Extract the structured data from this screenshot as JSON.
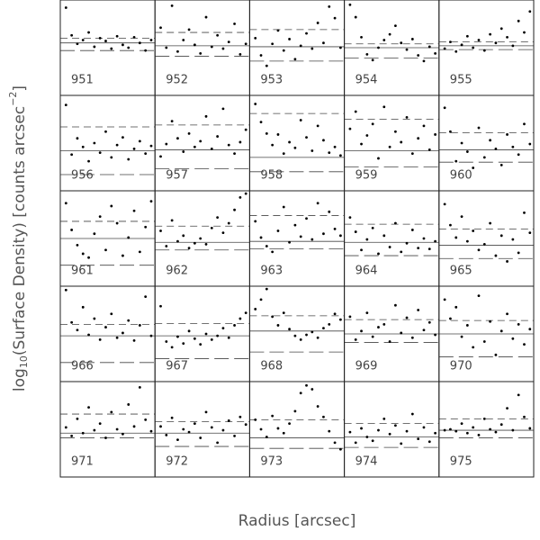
{
  "chart_data": {
    "type": "scatter-grid",
    "xlabel": "Radius [arcsec]",
    "ylabel": [
      "log",
      "10",
      "(Surface Density) [counts arcsec",
      "−2",
      "]"
    ],
    "xlim": [
      0,
      10
    ],
    "ylim": [
      0,
      10
    ],
    "x": [
      0.6,
      1.2,
      1.8,
      2.4,
      3.0,
      3.6,
      4.2,
      4.8,
      5.4,
      6.0,
      6.6,
      7.2,
      7.8,
      8.4,
      9.0,
      9.6
    ],
    "panels": [
      {
        "label": "951",
        "mean": 5.5,
        "upper": 6.0,
        "lower": 4.7,
        "y": [
          9.2,
          6.3,
          5.4,
          5.8,
          6.6,
          5.1,
          6.0,
          5.7,
          4.9,
          6.2,
          5.3,
          5.0,
          6.1,
          5.5,
          4.7,
          5.8
        ]
      },
      {
        "label": "952",
        "mean": 5.2,
        "upper": 6.6,
        "lower": 4.1,
        "y": [
          7.1,
          5.0,
          9.4,
          4.6,
          5.8,
          6.9,
          5.3,
          4.4,
          8.2,
          5.1,
          6.3,
          4.9,
          5.6,
          7.5,
          4.3,
          5.4
        ]
      },
      {
        "label": "953",
        "mean": 5.1,
        "upper": 6.9,
        "lower": 3.6,
        "y": [
          6.0,
          4.2,
          3.1,
          5.4,
          6.8,
          4.7,
          5.9,
          3.8,
          5.2,
          6.5,
          4.9,
          7.6,
          5.5,
          9.3,
          8.1,
          5.0
        ]
      },
      {
        "label": "954",
        "mean": 5.0,
        "upper": 5.4,
        "lower": 3.9,
        "y": [
          9.5,
          8.2,
          6.1,
          4.3,
          3.7,
          5.0,
          5.8,
          6.4,
          7.3,
          5.5,
          4.8,
          5.9,
          4.2,
          3.6,
          5.1,
          4.4
        ]
      },
      {
        "label": "955",
        "mean": 5.2,
        "upper": 5.6,
        "lower": 4.8,
        "y": [
          4.9,
          5.6,
          4.6,
          5.3,
          6.2,
          5.0,
          5.8,
          4.7,
          6.4,
          5.5,
          7.0,
          6.1,
          5.2,
          7.8,
          6.6,
          8.8
        ]
      },
      {
        "label": "956",
        "mean": 4.2,
        "upper": 6.7,
        "lower": 1.7,
        "y": [
          9.0,
          3.8,
          5.5,
          4.6,
          3.1,
          5.0,
          4.0,
          6.2,
          3.5,
          4.8,
          5.6,
          3.3,
          4.4,
          5.2,
          3.9,
          4.7
        ]
      },
      {
        "label": "957",
        "mean": 4.3,
        "upper": 6.9,
        "lower": 2.3,
        "y": [
          3.6,
          4.9,
          7.3,
          5.5,
          4.1,
          6.0,
          4.6,
          5.2,
          7.8,
          4.4,
          5.7,
          8.6,
          4.8,
          3.9,
          5.1,
          6.4
        ]
      },
      {
        "label": "958",
        "mean": 3.5,
        "upper": 8.1,
        "lower": 2.0,
        "y": [
          9.1,
          7.2,
          6.0,
          4.8,
          5.9,
          3.9,
          5.1,
          4.5,
          7.4,
          5.6,
          4.2,
          6.8,
          5.3,
          4.0,
          4.6,
          3.7
        ]
      },
      {
        "label": "959",
        "mean": 4.2,
        "upper": 7.5,
        "lower": 2.5,
        "y": [
          6.5,
          8.3,
          4.9,
          5.8,
          7.0,
          3.4,
          8.8,
          4.6,
          6.2,
          5.1,
          7.7,
          3.9,
          5.5,
          6.8,
          4.3,
          5.9
        ]
      },
      {
        "label": "960",
        "mean": 4.3,
        "upper": 6.1,
        "lower": 3.0,
        "y": [
          8.7,
          6.2,
          3.1,
          5.0,
          4.1,
          2.4,
          6.6,
          3.5,
          5.3,
          4.4,
          2.7,
          5.9,
          4.6,
          3.8,
          7.0,
          4.9
        ]
      },
      {
        "label": "961",
        "mean": 5.0,
        "upper": 6.8,
        "lower": 2.2,
        "y": [
          8.7,
          5.9,
          4.3,
          3.4,
          3.0,
          5.5,
          7.3,
          3.8,
          8.4,
          6.6,
          3.2,
          5.1,
          7.9,
          3.6,
          6.2,
          8.9
        ]
      },
      {
        "label": "962",
        "mean": 4.6,
        "upper": 6.3,
        "lower": 3.8,
        "y": [
          5.8,
          4.2,
          6.9,
          4.7,
          5.3,
          4.0,
          4.5,
          5.0,
          4.4,
          6.1,
          7.2,
          5.6,
          6.6,
          8.0,
          9.3,
          9.7
        ]
      },
      {
        "label": "963",
        "mean": 4.7,
        "upper": 7.4,
        "lower": 3.9,
        "y": [
          6.8,
          5.1,
          4.2,
          3.6,
          5.8,
          8.3,
          4.6,
          6.4,
          5.2,
          7.1,
          4.9,
          8.7,
          5.5,
          7.8,
          6.0,
          5.3
        ]
      },
      {
        "label": "964",
        "mean": 4.6,
        "upper": 6.5,
        "lower": 3.2,
        "y": [
          7.2,
          5.7,
          3.8,
          4.9,
          6.1,
          3.4,
          5.3,
          4.1,
          6.6,
          3.6,
          4.5,
          5.9,
          4.0,
          5.0,
          3.9,
          4.7
        ]
      },
      {
        "label": "965",
        "mean": 4.3,
        "upper": 6.0,
        "lower": 2.9,
        "y": [
          8.6,
          6.4,
          5.1,
          7.3,
          4.7,
          5.8,
          3.8,
          4.4,
          6.6,
          3.2,
          5.3,
          2.6,
          4.9,
          3.5,
          7.7,
          5.6
        ]
      },
      {
        "label": "966",
        "mean": 4.8,
        "upper": 6.0,
        "lower": 2.0,
        "y": [
          9.6,
          6.2,
          5.4,
          7.8,
          4.9,
          6.6,
          4.4,
          5.7,
          7.1,
          4.6,
          5.1,
          6.4,
          4.3,
          5.9,
          8.9,
          4.8
        ]
      },
      {
        "label": "967",
        "mean": 4.8,
        "upper": 6.1,
        "lower": 2.4,
        "y": [
          7.9,
          4.2,
          3.6,
          4.7,
          4.0,
          5.3,
          4.5,
          3.9,
          5.0,
          4.4,
          4.8,
          5.6,
          4.6,
          5.9,
          6.6,
          7.2
        ]
      },
      {
        "label": "968",
        "mean": 5.3,
        "upper": 6.9,
        "lower": 3.1,
        "y": [
          7.6,
          8.6,
          9.7,
          6.8,
          5.9,
          7.2,
          5.5,
          4.8,
          4.4,
          4.9,
          5.2,
          4.6,
          5.6,
          6.0,
          7.1,
          6.5
        ]
      },
      {
        "label": "969",
        "mean": 5.0,
        "upper": 6.5,
        "lower": 4.1,
        "y": [
          6.8,
          4.4,
          5.3,
          7.2,
          4.7,
          5.7,
          6.0,
          4.2,
          8.0,
          5.1,
          6.7,
          4.6,
          7.5,
          5.4,
          6.2,
          4.9
        ]
      },
      {
        "label": "970",
        "mean": 5.0,
        "upper": 6.4,
        "lower": 2.6,
        "y": [
          8.6,
          6.6,
          7.8,
          4.7,
          5.9,
          3.6,
          9.0,
          4.2,
          6.3,
          2.8,
          5.3,
          7.1,
          4.5,
          6.0,
          3.9,
          5.5
        ]
      },
      {
        "label": "971",
        "mean": 4.6,
        "upper": 6.6,
        "lower": 4.1,
        "y": [
          5.2,
          4.3,
          6.1,
          4.6,
          7.3,
          4.9,
          5.6,
          4.1,
          6.8,
          5.0,
          4.5,
          7.6,
          5.3,
          9.4,
          6.0,
          4.8
        ]
      },
      {
        "label": "972",
        "mean": 4.6,
        "upper": 5.8,
        "lower": 3.2,
        "y": [
          5.3,
          4.4,
          6.2,
          3.9,
          5.0,
          4.7,
          5.6,
          4.1,
          6.8,
          5.2,
          3.6,
          4.9,
          5.9,
          4.3,
          6.3,
          5.5
        ]
      },
      {
        "label": "973",
        "mean": 4.1,
        "upper": 6.0,
        "lower": 3.0,
        "y": [
          6.0,
          5.0,
          4.2,
          6.4,
          5.1,
          4.6,
          5.6,
          6.9,
          8.8,
          9.6,
          9.2,
          7.4,
          6.3,
          4.8,
          3.6,
          2.9
        ]
      },
      {
        "label": "974",
        "mean": 4.2,
        "upper": 5.6,
        "lower": 3.1,
        "y": [
          4.7,
          3.6,
          5.1,
          4.2,
          3.8,
          4.9,
          6.1,
          4.5,
          5.4,
          3.5,
          4.8,
          6.6,
          4.0,
          5.2,
          3.7,
          4.6
        ]
      },
      {
        "label": "975",
        "mean": 4.9,
        "upper": 6.1,
        "lower": 4.1,
        "y": [
          4.9,
          5.0,
          4.8,
          5.6,
          4.6,
          5.2,
          4.4,
          6.1,
          5.0,
          4.7,
          5.5,
          7.2,
          4.9,
          8.6,
          6.3,
          5.1
        ]
      }
    ]
  }
}
